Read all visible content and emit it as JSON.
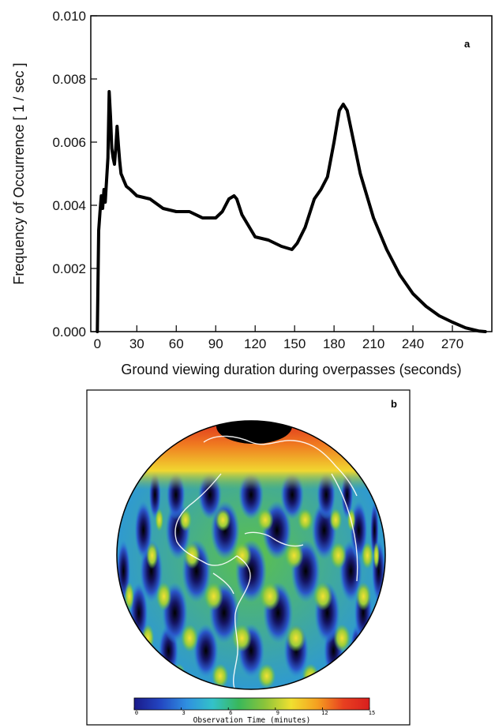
{
  "chart_data": [
    {
      "type": "line",
      "panel_label": "a",
      "xlabel": "Ground viewing duration during overpasses (seconds)",
      "ylabel": "Frequency of Occurrence [ 1 / sec ]",
      "xlim": [
        -5,
        300
      ],
      "ylim": [
        0.0,
        0.01
      ],
      "xticks": [
        "0",
        "30",
        "60",
        "90",
        "120",
        "150",
        "180",
        "210",
        "240",
        "270"
      ],
      "yticks": [
        "0.000",
        "0.002",
        "0.004",
        "0.006",
        "0.008",
        "0.010"
      ],
      "grid": false,
      "series": [
        {
          "x": [
            0,
            1,
            2,
            3,
            4,
            5,
            6,
            7,
            8,
            9,
            10,
            11,
            12,
            13,
            14,
            15,
            16,
            17,
            18,
            19,
            20,
            22,
            25,
            30,
            40,
            50,
            60,
            70,
            80,
            90,
            95,
            100,
            104,
            106,
            110,
            120,
            130,
            140,
            148,
            152,
            158,
            165,
            170,
            175,
            180,
            184,
            187,
            190,
            193,
            200,
            210,
            220,
            230,
            240,
            250,
            260,
            270,
            280,
            290,
            295
          ],
          "values": [
            0.0,
            0.0032,
            0.0038,
            0.0043,
            0.0039,
            0.0045,
            0.0041,
            0.0048,
            0.0055,
            0.0076,
            0.0068,
            0.0058,
            0.0055,
            0.0053,
            0.0058,
            0.0065,
            0.0059,
            0.0054,
            0.005,
            0.0049,
            0.0048,
            0.0046,
            0.0045,
            0.0043,
            0.0042,
            0.0039,
            0.0038,
            0.0038,
            0.0036,
            0.0036,
            0.0038,
            0.0042,
            0.0043,
            0.0042,
            0.0037,
            0.003,
            0.0029,
            0.0027,
            0.0026,
            0.0028,
            0.0033,
            0.0042,
            0.0045,
            0.0049,
            0.006,
            0.007,
            0.0072,
            0.007,
            0.0064,
            0.005,
            0.0036,
            0.0026,
            0.0018,
            0.0012,
            0.0008,
            0.0005,
            0.0003,
            0.00012,
            2e-05,
            0.0
          ]
        }
      ]
    },
    {
      "type": "heatmap",
      "panel_label": "b",
      "colorbar_label": "Observation Time (minutes)",
      "colorbar_range": [
        0,
        15
      ],
      "colorbar_ticks": [
        "0",
        "3",
        "6",
        "9",
        "12",
        "15"
      ],
      "colorscale": [
        "#000000",
        "#1a1a8a",
        "#2346c2",
        "#2f8fe0",
        "#33c2c9",
        "#39b85a",
        "#8cc43a",
        "#f0e030",
        "#f5a020",
        "#e84020",
        "#d81e1e"
      ]
    }
  ]
}
